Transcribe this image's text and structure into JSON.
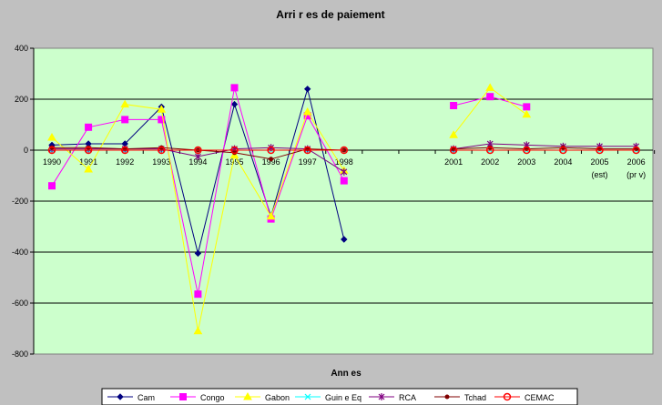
{
  "chart_data": {
    "type": "line",
    "title": "Arri  r  es de paiement",
    "xlabel": "Ann  es",
    "ylabel": "",
    "ylim": [
      -800,
      400
    ],
    "yticks": [
      400,
      200,
      0,
      -200,
      -400,
      -600,
      -800
    ],
    "ytick_labels": [
      "400",
      "200",
      "0",
      "-200",
      "-400",
      "-600",
      "-800"
    ],
    "grid": true,
    "legend_position": "bottom",
    "plot_background": "#ccffcc",
    "page_background": "#c0c0c0",
    "categories": [
      "1990",
      "1991",
      "1992",
      "1993",
      "1994",
      "1995",
      "1996",
      "1997",
      "1998",
      "",
      "",
      "2001",
      "2002",
      "2003",
      "2004",
      "2005",
      "2006"
    ],
    "category_sublabels": [
      "",
      "",
      "",
      "",
      "",
      "",
      "",
      "",
      "",
      "",
      "",
      "",
      "",
      "",
      "",
      "(est)",
      "(pr  v)"
    ],
    "series": [
      {
        "name": "Cam",
        "color": "#000080",
        "marker": "diamond",
        "values": [
          20,
          25,
          25,
          170,
          -405,
          180,
          -260,
          240,
          -350,
          null,
          null,
          null,
          null,
          null,
          null,
          null,
          null
        ]
      },
      {
        "name": "Congo",
        "color": "#ff00ff",
        "marker": "square",
        "values": [
          -140,
          90,
          120,
          120,
          -565,
          245,
          -270,
          135,
          -120,
          null,
          null,
          175,
          210,
          170,
          null,
          null,
          null
        ]
      },
      {
        "name": "Gabon",
        "color": "#ffff00",
        "marker": "triangle",
        "values": [
          50,
          -75,
          180,
          160,
          -710,
          -20,
          -260,
          150,
          -80,
          null,
          null,
          60,
          245,
          140,
          null,
          null,
          null
        ]
      },
      {
        "name": "Guin  e Eq",
        "color": "#00ffff",
        "marker": "x",
        "values": [
          0,
          0,
          0,
          0,
          0,
          0,
          0,
          0,
          0,
          null,
          null,
          0,
          0,
          0,
          0,
          0,
          0
        ]
      },
      {
        "name": "RCA",
        "color": "#800080",
        "marker": "star",
        "values": [
          5,
          5,
          5,
          5,
          -25,
          5,
          10,
          5,
          -85,
          null,
          null,
          5,
          25,
          20,
          15,
          15,
          15
        ]
      },
      {
        "name": "Tchad",
        "color": "#800000",
        "marker": "dot",
        "values": [
          10,
          10,
          5,
          10,
          0,
          -10,
          -35,
          5,
          0,
          null,
          null,
          5,
          10,
          5,
          10,
          5,
          5
        ]
      },
      {
        "name": "CEMAC",
        "color": "#ff0000",
        "marker": "circle",
        "values": [
          0,
          0,
          0,
          0,
          0,
          0,
          0,
          0,
          0,
          null,
          null,
          0,
          0,
          0,
          0,
          0,
          0
        ]
      }
    ]
  }
}
